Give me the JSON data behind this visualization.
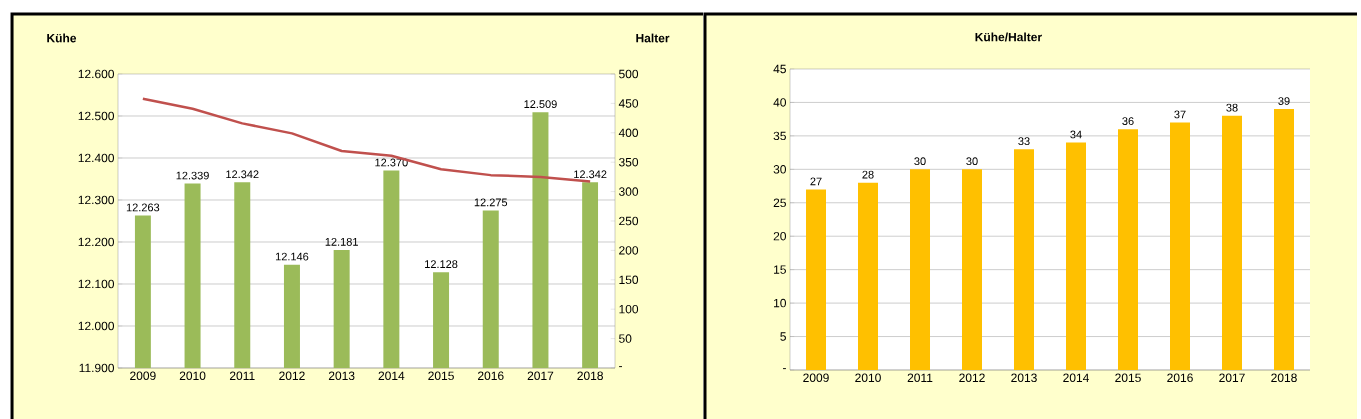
{
  "chart_data": [
    {
      "type": "bar",
      "ylabel": "Kühe",
      "y2label": "Halter",
      "categories": [
        "2009",
        "2010",
        "2011",
        "2012",
        "2013",
        "2014",
        "2015",
        "2016",
        "2017",
        "2018"
      ],
      "series": [
        {
          "type": "bar",
          "color": "#9bbb59",
          "values": [
            12263,
            12339,
            12342,
            12146,
            12181,
            12370,
            12128,
            12275,
            12509,
            12342
          ],
          "value_labels": [
            "12.263",
            "12.339",
            "12.342",
            "12.146",
            "12.181",
            "12.370",
            "12.128",
            "12.275",
            "12.509",
            "12.342"
          ]
        },
        {
          "type": "line",
          "axis": "y2",
          "color": "#c0504d",
          "values": [
            458,
            441,
            416,
            399,
            369,
            361,
            338,
            328,
            325,
            317
          ]
        }
      ],
      "ylim": [
        11900,
        12600
      ],
      "yticks": [
        {
          "value": 11900,
          "label": "11.900"
        },
        {
          "value": 12000,
          "label": "12.000"
        },
        {
          "value": 12100,
          "label": "12.100"
        },
        {
          "value": 12200,
          "label": "12.200"
        },
        {
          "value": 12300,
          "label": "12.300"
        },
        {
          "value": 12400,
          "label": "12.400"
        },
        {
          "value": 12500,
          "label": "12.500"
        },
        {
          "value": 12600,
          "label": "12.600"
        }
      ],
      "y2lim": [
        0,
        500
      ],
      "y2ticks": [
        {
          "value": 0,
          "label": "-"
        },
        50,
        100,
        150,
        200,
        250,
        300,
        350,
        400,
        450,
        500
      ],
      "grid": "y"
    },
    {
      "type": "bar",
      "title": "Kühe/Halter",
      "categories": [
        "2009",
        "2010",
        "2011",
        "2012",
        "2013",
        "2014",
        "2015",
        "2016",
        "2017",
        "2018"
      ],
      "values": [
        27,
        28,
        30,
        30,
        33,
        34,
        36,
        37,
        38,
        39
      ],
      "color": "#ffc000",
      "data_labels": true,
      "ylim": [
        0,
        45
      ],
      "yticks": [
        {
          "value": 0,
          "label": "-"
        },
        5,
        10,
        15,
        20,
        25,
        30,
        35,
        40,
        45
      ],
      "grid": "y"
    }
  ]
}
